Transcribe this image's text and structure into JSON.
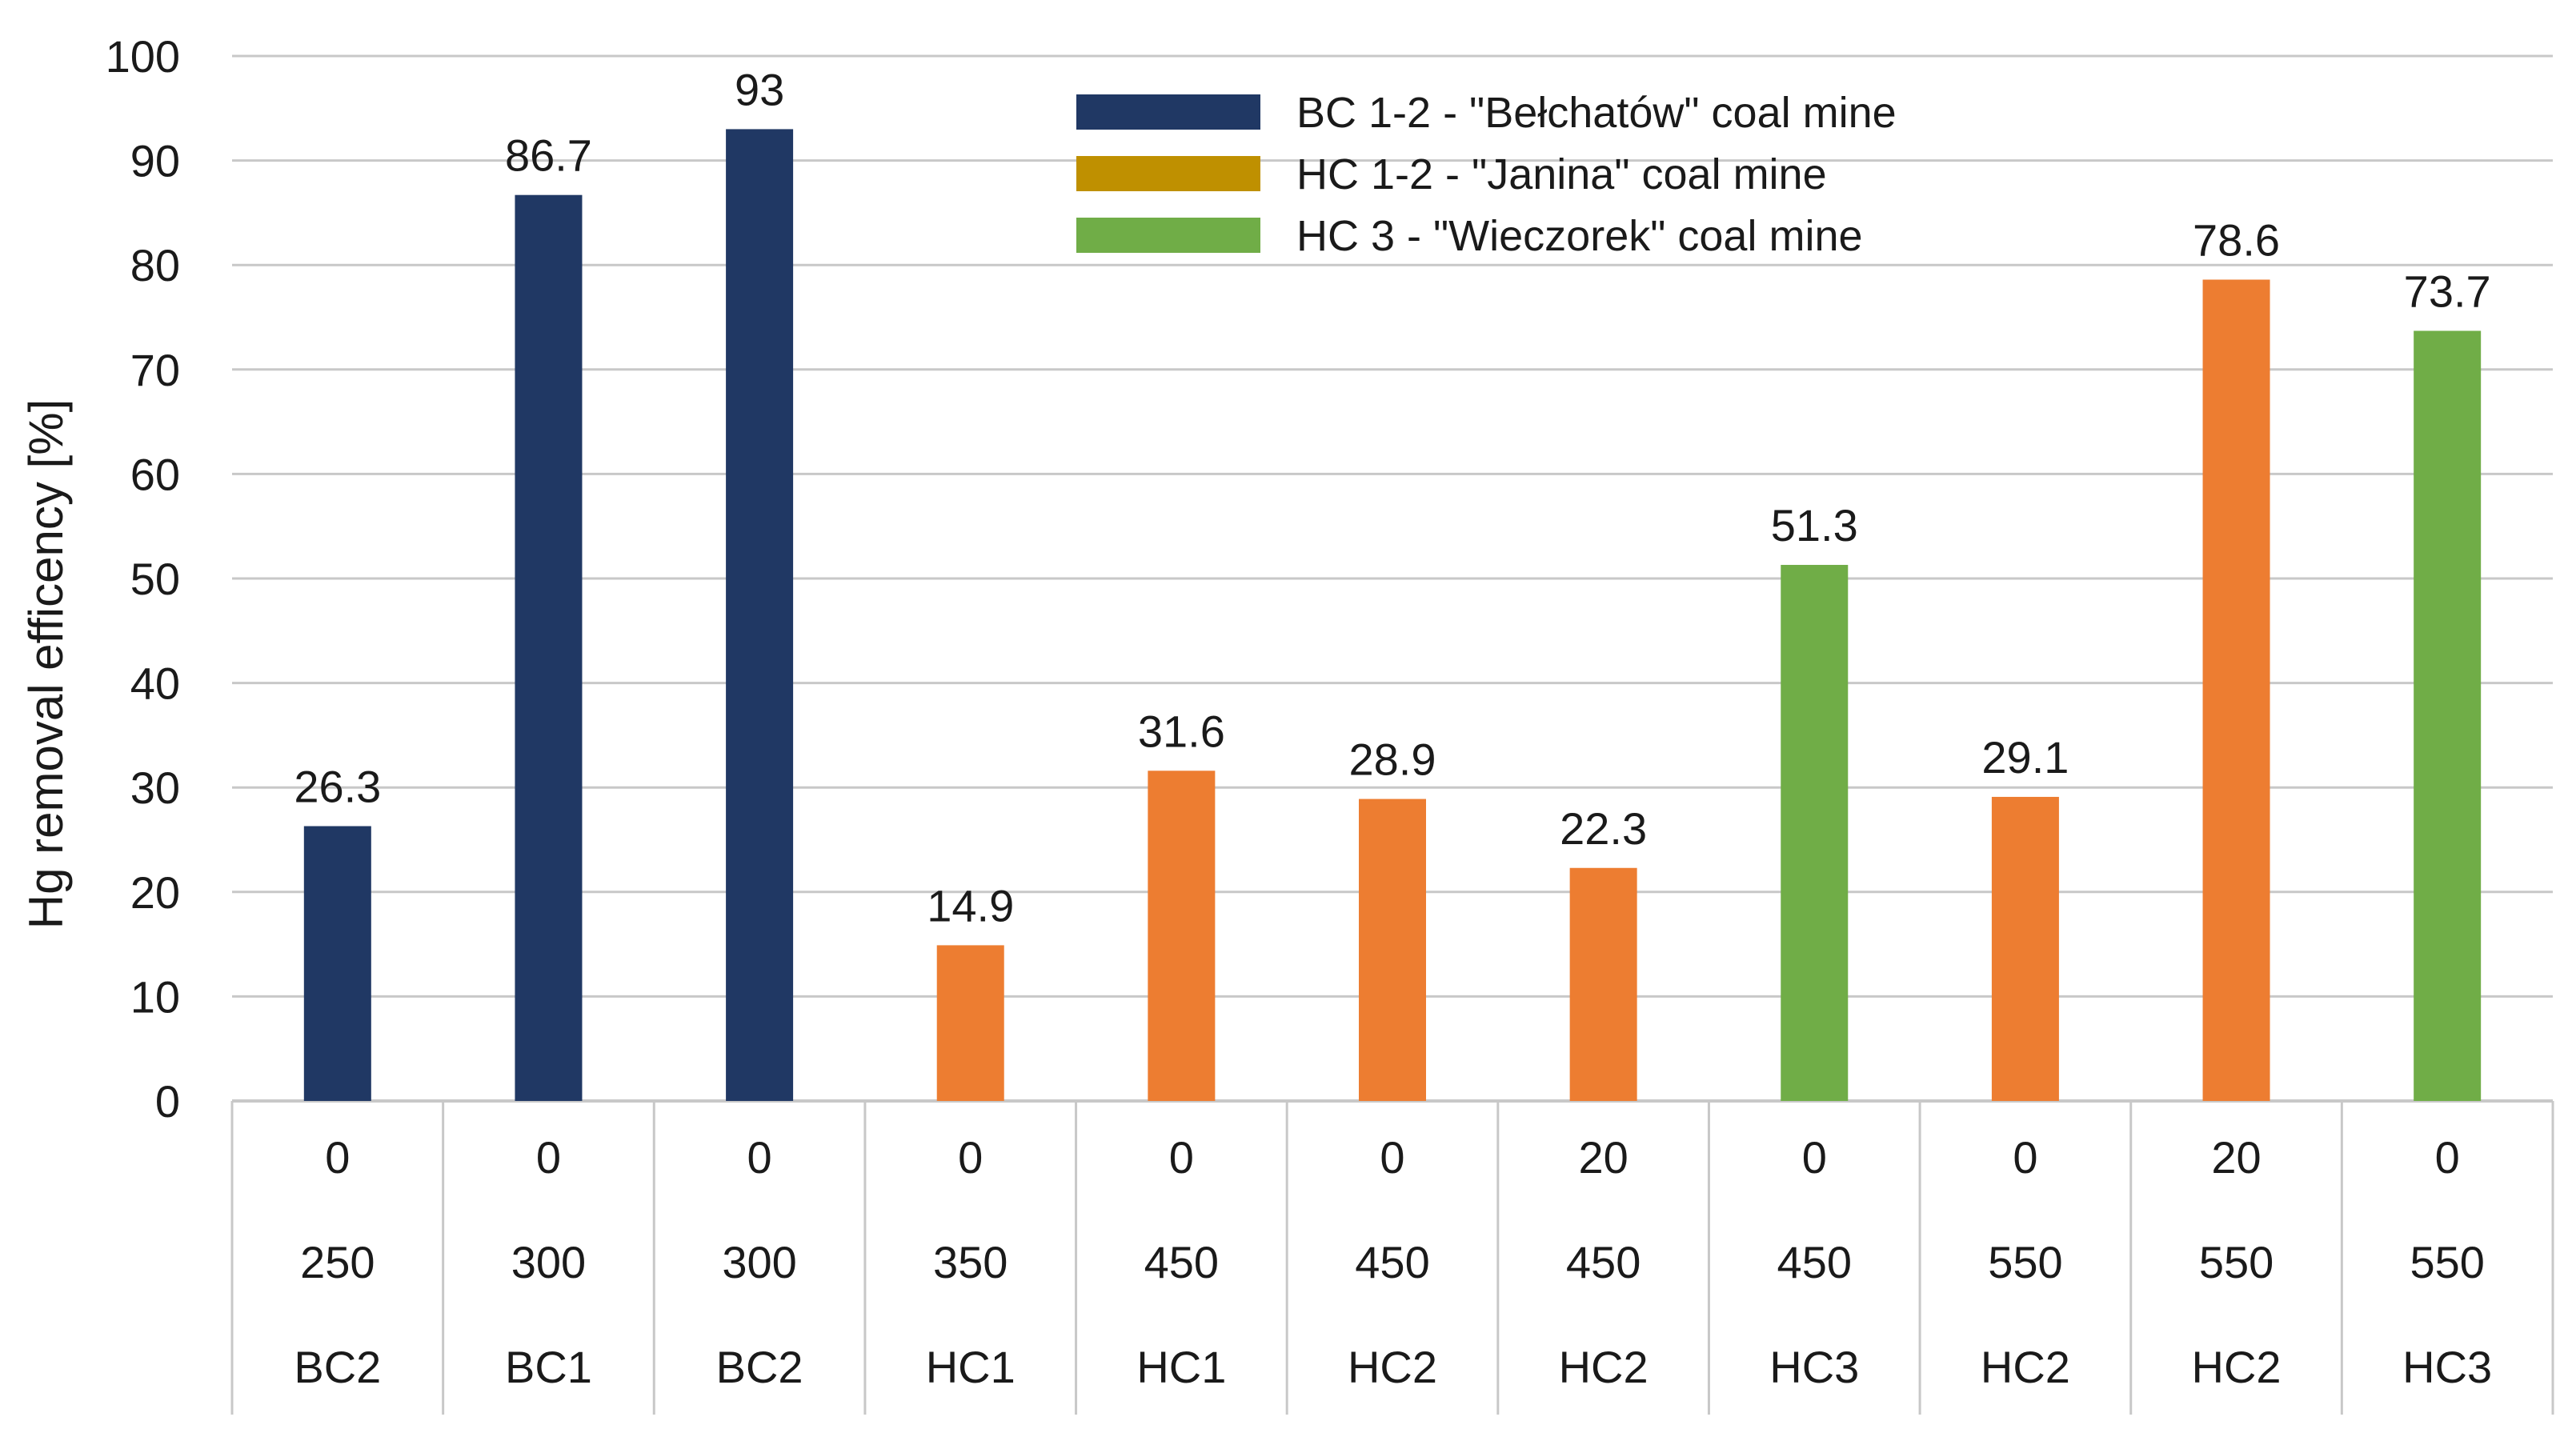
{
  "chart_data": {
    "type": "bar",
    "title": "",
    "ylabel": "Hg removal efficency [%]",
    "xlabel": "",
    "ylim": [
      0,
      100
    ],
    "yticks": [
      0,
      10,
      20,
      30,
      40,
      50,
      60,
      70,
      80,
      90,
      100
    ],
    "grid": true,
    "legend_position": "top-center",
    "category_rows": [
      [
        "0",
        "0",
        "0",
        "0",
        "0",
        "0",
        "20",
        "0",
        "0",
        "20",
        "0"
      ],
      [
        "250",
        "300",
        "300",
        "350",
        "450",
        "450",
        "450",
        "450",
        "550",
        "550",
        "550"
      ],
      [
        "BC2",
        "BC1",
        "BC2",
        "HC1",
        "HC1",
        "HC2",
        "HC2",
        "HC3",
        "HC2",
        "HC2",
        "HC3"
      ]
    ],
    "values": [
      26.3,
      86.7,
      93,
      14.9,
      31.6,
      28.9,
      22.3,
      51.3,
      29.1,
      78.6,
      73.7
    ],
    "value_labels": [
      "26.3",
      "86.7",
      "93",
      "14.9",
      "31.6",
      "28.9",
      "22.3",
      "51.3",
      "29.1",
      "78.6",
      "73.7"
    ],
    "bar_colors": [
      "#203864",
      "#203864",
      "#203864",
      "#ED7D31",
      "#ED7D31",
      "#ED7D31",
      "#ED7D31",
      "#70AD47",
      "#ED7D31",
      "#ED7D31",
      "#70AD47"
    ],
    "legend": [
      {
        "label": "BC 1-2 - \"Bełchatów\" coal mine",
        "color": "#203864"
      },
      {
        "label": "HC 1-2 - \"Janina\" coal mine",
        "color": "#BF9000"
      },
      {
        "label": "HC 3 - \"Wieczorek\" coal mine",
        "color": "#70AD47"
      }
    ]
  }
}
